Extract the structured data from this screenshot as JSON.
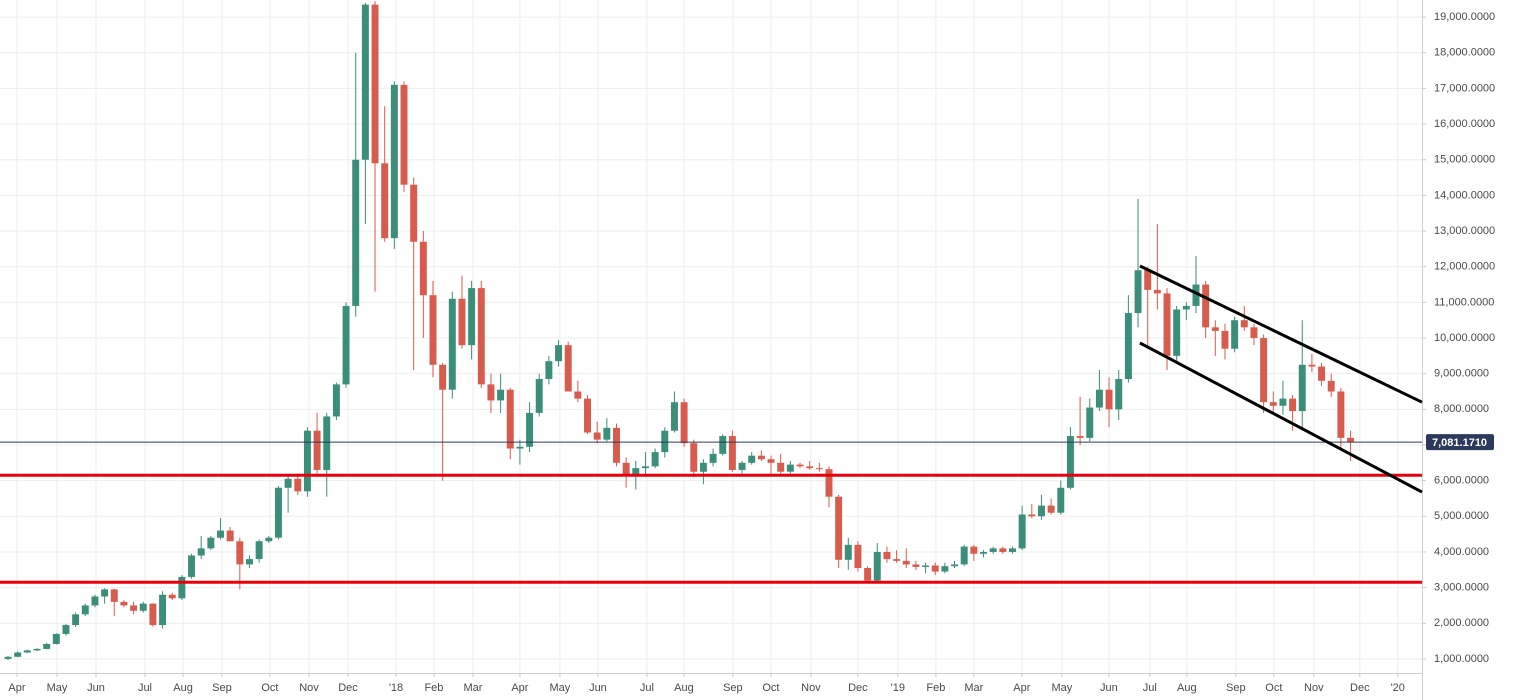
{
  "chart_data": {
    "type": "candlestick",
    "up_color": "#3b8e7a",
    "down_color": "#d85c4d",
    "grid": true,
    "ylim": [
      605,
      19480
    ],
    "yticks": [
      {
        "value": 1000,
        "label": "1,000.0000"
      },
      {
        "value": 2000,
        "label": "2,000.0000"
      },
      {
        "value": 3000,
        "label": "3,000.0000"
      },
      {
        "value": 4000,
        "label": "4,000.0000"
      },
      {
        "value": 5000,
        "label": "5,000.0000"
      },
      {
        "value": 6000,
        "label": "6,000.0000"
      },
      {
        "value": 7000,
        "label": "7,000.0000"
      },
      {
        "value": 8000,
        "label": "8,000.0000"
      },
      {
        "value": 9000,
        "label": "9,000.0000"
      },
      {
        "value": 10000,
        "label": "10,000.0000"
      },
      {
        "value": 11000,
        "label": "11,000.0000"
      },
      {
        "value": 12000,
        "label": "12,000.0000"
      },
      {
        "value": 13000,
        "label": "13,000.0000"
      },
      {
        "value": 14000,
        "label": "14,000.0000"
      },
      {
        "value": 15000,
        "label": "15,000.0000"
      },
      {
        "value": 16000,
        "label": "16,000.0000"
      },
      {
        "value": 17000,
        "label": "17,000.0000"
      },
      {
        "value": 18000,
        "label": "18,000.0000"
      },
      {
        "value": 19000,
        "label": "19,000.0000"
      }
    ],
    "xlim": [
      -0.83,
      146.4
    ],
    "xticks": [
      {
        "value": 0.93,
        "label": "Apr"
      },
      {
        "value": 5.07,
        "label": "May"
      },
      {
        "value": 9.11,
        "label": "Jun"
      },
      {
        "value": 14.18,
        "label": "Jul"
      },
      {
        "value": 18.12,
        "label": "Aug"
      },
      {
        "value": 22.15,
        "label": "Sep"
      },
      {
        "value": 27.12,
        "label": "Oct"
      },
      {
        "value": 31.16,
        "label": "Nov"
      },
      {
        "value": 35.2,
        "label": "Dec"
      },
      {
        "value": 40.17,
        "label": "'18"
      },
      {
        "value": 44.1,
        "label": "Feb"
      },
      {
        "value": 48.14,
        "label": "Mar"
      },
      {
        "value": 53.0,
        "label": "Apr"
      },
      {
        "value": 57.14,
        "label": "May"
      },
      {
        "value": 61.08,
        "label": "Jun"
      },
      {
        "value": 66.15,
        "label": "Jul"
      },
      {
        "value": 69.98,
        "label": "Aug"
      },
      {
        "value": 75.05,
        "label": "Sep"
      },
      {
        "value": 78.99,
        "label": "Oct"
      },
      {
        "value": 83.13,
        "label": "Nov"
      },
      {
        "value": 87.99,
        "label": "Dec"
      },
      {
        "value": 92.13,
        "label": "'19"
      },
      {
        "value": 96.07,
        "label": "Feb"
      },
      {
        "value": 100.0,
        "label": "Mar"
      },
      {
        "value": 104.97,
        "label": "Apr"
      },
      {
        "value": 109.11,
        "label": "May"
      },
      {
        "value": 113.98,
        "label": "Jun"
      },
      {
        "value": 118.22,
        "label": "Jul"
      },
      {
        "value": 122.05,
        "label": "Aug"
      },
      {
        "value": 127.12,
        "label": "Sep"
      },
      {
        "value": 131.06,
        "label": "Oct"
      },
      {
        "value": 135.2,
        "label": "Nov"
      },
      {
        "value": 139.96,
        "label": "Dec"
      },
      {
        "value": 143.89,
        "label": "'20"
      }
    ],
    "ohlc": [
      [
        1000,
        1080,
        970,
        1060
      ],
      [
        1060,
        1210,
        1050,
        1180
      ],
      [
        1180,
        1260,
        1160,
        1240
      ],
      [
        1240,
        1300,
        1220,
        1280
      ],
      [
        1280,
        1450,
        1270,
        1420
      ],
      [
        1420,
        1720,
        1400,
        1700
      ],
      [
        1700,
        1980,
        1650,
        1950
      ],
      [
        1950,
        2300,
        1900,
        2250
      ],
      [
        2250,
        2550,
        2200,
        2500
      ],
      [
        2500,
        2800,
        2450,
        2750
      ],
      [
        2750,
        2980,
        2550,
        2950
      ],
      [
        2950,
        2970,
        2200,
        2600
      ],
      [
        2600,
        2650,
        2450,
        2500
      ],
      [
        2500,
        2600,
        2250,
        2350
      ],
      [
        2350,
        2600,
        2300,
        2550
      ],
      [
        2550,
        2560,
        1900,
        1950
      ],
      [
        1950,
        2900,
        1850,
        2800
      ],
      [
        2800,
        2850,
        2650,
        2700
      ],
      [
        2700,
        3350,
        2650,
        3300
      ],
      [
        3300,
        3950,
        3250,
        3900
      ],
      [
        3900,
        4450,
        3800,
        4100
      ],
      [
        4100,
        4450,
        4050,
        4400
      ],
      [
        4400,
        4950,
        4350,
        4600
      ],
      [
        4600,
        4700,
        4300,
        4300
      ],
      [
        4300,
        4400,
        2950,
        3650
      ],
      [
        3650,
        3900,
        3550,
        3800
      ],
      [
        3800,
        4350,
        3700,
        4300
      ],
      [
        4300,
        4450,
        4250,
        4400
      ],
      [
        4400,
        5850,
        4350,
        5800
      ],
      [
        5800,
        6150,
        5100,
        6050
      ],
      [
        6050,
        6200,
        5600,
        5700
      ],
      [
        5700,
        7500,
        5550,
        7400
      ],
      [
        7400,
        7900,
        6200,
        6300
      ],
      [
        6300,
        7900,
        5550,
        7800
      ],
      [
        7800,
        8750,
        7700,
        8700
      ],
      [
        8700,
        11000,
        8600,
        10900
      ],
      [
        10900,
        18000,
        10600,
        15000
      ],
      [
        15000,
        19400,
        13200,
        19350
      ],
      [
        19350,
        19450,
        11300,
        14900
      ],
      [
        14900,
        16500,
        12700,
        12800
      ],
      [
        12800,
        17200,
        12500,
        17100
      ],
      [
        17100,
        17200,
        14100,
        14300
      ],
      [
        14300,
        14500,
        9100,
        12700
      ],
      [
        12700,
        13000,
        10000,
        11200
      ],
      [
        11200,
        11600,
        8900,
        9250
      ],
      [
        9250,
        9300,
        6000,
        8550
      ],
      [
        8550,
        11300,
        8300,
        11100
      ],
      [
        11100,
        11750,
        9700,
        9800
      ],
      [
        9800,
        11600,
        9400,
        11400
      ],
      [
        11400,
        11600,
        8600,
        8700
      ],
      [
        8700,
        9000,
        7900,
        8250
      ],
      [
        8250,
        9000,
        7900,
        8550
      ],
      [
        8550,
        8600,
        6600,
        6900
      ],
      [
        6900,
        7150,
        6450,
        6950
      ],
      [
        6950,
        8200,
        6800,
        7900
      ],
      [
        7900,
        9000,
        7800,
        8850
      ],
      [
        8850,
        9500,
        8700,
        9350
      ],
      [
        9350,
        9950,
        9200,
        9800
      ],
      [
        9800,
        9900,
        8500,
        8500
      ],
      [
        8500,
        8800,
        8200,
        8300
      ],
      [
        8300,
        8400,
        7300,
        7350
      ],
      [
        7350,
        7650,
        7050,
        7150
      ],
      [
        7150,
        7750,
        7100,
        7480
      ],
      [
        7480,
        7600,
        6400,
        6500
      ],
      [
        6500,
        6650,
        5800,
        6150
      ],
      [
        6150,
        6550,
        5750,
        6350
      ],
      [
        6350,
        6800,
        6100,
        6400
      ],
      [
        6400,
        6900,
        6350,
        6800
      ],
      [
        6800,
        7500,
        6650,
        7400
      ],
      [
        7400,
        8500,
        7350,
        8200
      ],
      [
        8200,
        8300,
        6950,
        7050
      ],
      [
        7050,
        7150,
        6100,
        6250
      ],
      [
        6250,
        6600,
        5900,
        6500
      ],
      [
        6500,
        6900,
        6400,
        6750
      ],
      [
        6750,
        7300,
        6700,
        7250
      ],
      [
        7250,
        7400,
        6250,
        6300
      ],
      [
        6300,
        6550,
        6200,
        6500
      ],
      [
        6500,
        6800,
        6450,
        6700
      ],
      [
        6700,
        6850,
        6550,
        6600
      ],
      [
        6600,
        6700,
        6200,
        6500
      ],
      [
        6500,
        6750,
        6200,
        6250
      ],
      [
        6250,
        6550,
        6200,
        6450
      ],
      [
        6450,
        6500,
        6350,
        6400
      ],
      [
        6400,
        6550,
        6300,
        6350
      ],
      [
        6350,
        6500,
        6250,
        6320
      ],
      [
        6320,
        6400,
        5250,
        5550
      ],
      [
        5550,
        5600,
        3550,
        3780
      ],
      [
        3780,
        4400,
        3500,
        4200
      ],
      [
        4200,
        4300,
        3450,
        3550
      ],
      [
        3550,
        3600,
        3150,
        3200
      ],
      [
        3200,
        4250,
        3150,
        4000
      ],
      [
        4000,
        4150,
        3700,
        3800
      ],
      [
        3800,
        4050,
        3700,
        3750
      ],
      [
        3750,
        4100,
        3550,
        3650
      ],
      [
        3650,
        3750,
        3500,
        3580
      ],
      [
        3580,
        3700,
        3400,
        3620
      ],
      [
        3620,
        3700,
        3350,
        3450
      ],
      [
        3450,
        3700,
        3400,
        3600
      ],
      [
        3600,
        3750,
        3550,
        3650
      ],
      [
        3650,
        4200,
        3600,
        4150
      ],
      [
        4150,
        4200,
        3750,
        3950
      ],
      [
        3950,
        4050,
        3850,
        4000
      ],
      [
        4000,
        4150,
        3950,
        4100
      ],
      [
        4100,
        4150,
        3950,
        4000
      ],
      [
        4000,
        4150,
        3950,
        4100
      ],
      [
        4100,
        5300,
        4050,
        5050
      ],
      [
        5050,
        5350,
        4950,
        5000
      ],
      [
        5000,
        5600,
        4900,
        5300
      ],
      [
        5300,
        5500,
        5050,
        5100
      ],
      [
        5100,
        6000,
        5050,
        5800
      ],
      [
        5800,
        7500,
        5750,
        7250
      ],
      [
        7250,
        8350,
        7000,
        7200
      ],
      [
        7200,
        8300,
        7100,
        8050
      ],
      [
        8050,
        9100,
        7950,
        8550
      ],
      [
        8550,
        8900,
        7500,
        8000
      ],
      [
        8000,
        9100,
        7700,
        8850
      ],
      [
        8850,
        11200,
        8750,
        10700
      ],
      [
        10700,
        13900,
        10300,
        11900
      ],
      [
        11900,
        12000,
        9700,
        11350
      ],
      [
        11350,
        13200,
        10800,
        11250
      ],
      [
        11250,
        11400,
        9100,
        9500
      ],
      [
        9500,
        10900,
        9300,
        10800
      ],
      [
        10800,
        11000,
        10500,
        10900
      ],
      [
        10900,
        12300,
        10700,
        11500
      ],
      [
        11500,
        11600,
        10000,
        10300
      ],
      [
        10300,
        10500,
        9500,
        10200
      ],
      [
        10200,
        10400,
        9400,
        9700
      ],
      [
        9700,
        10600,
        9600,
        10500
      ],
      [
        10500,
        10900,
        10200,
        10300
      ],
      [
        10300,
        10400,
        9800,
        10000
      ],
      [
        10000,
        10100,
        7900,
        8200
      ],
      [
        8200,
        8500,
        7900,
        8100
      ],
      [
        8100,
        8800,
        7850,
        8300
      ],
      [
        8300,
        8400,
        7400,
        7950
      ],
      [
        7950,
        10500,
        7400,
        9250
      ],
      [
        9250,
        9550,
        9050,
        9200
      ],
      [
        9200,
        9300,
        8650,
        8800
      ],
      [
        8800,
        9000,
        8350,
        8500
      ],
      [
        8500,
        8600,
        6850,
        7200
      ],
      [
        7200,
        7400,
        6550,
        7081.171
      ]
    ],
    "hlines": [
      {
        "value": 6150,
        "color": "#e8000b"
      },
      {
        "value": 3150,
        "color": "#e8000b"
      }
    ],
    "trendlines": [
      {
        "color": "#000000",
        "points": [
          [
            117.2,
            12020
          ],
          [
            146.4,
            8200
          ]
        ]
      },
      {
        "color": "#000000",
        "points": [
          [
            117.2,
            9860
          ],
          [
            146.4,
            5680
          ]
        ]
      }
    ],
    "last_price": {
      "value": 7081.171,
      "label": "7,081.1710",
      "color": "#2b3a5c"
    }
  }
}
